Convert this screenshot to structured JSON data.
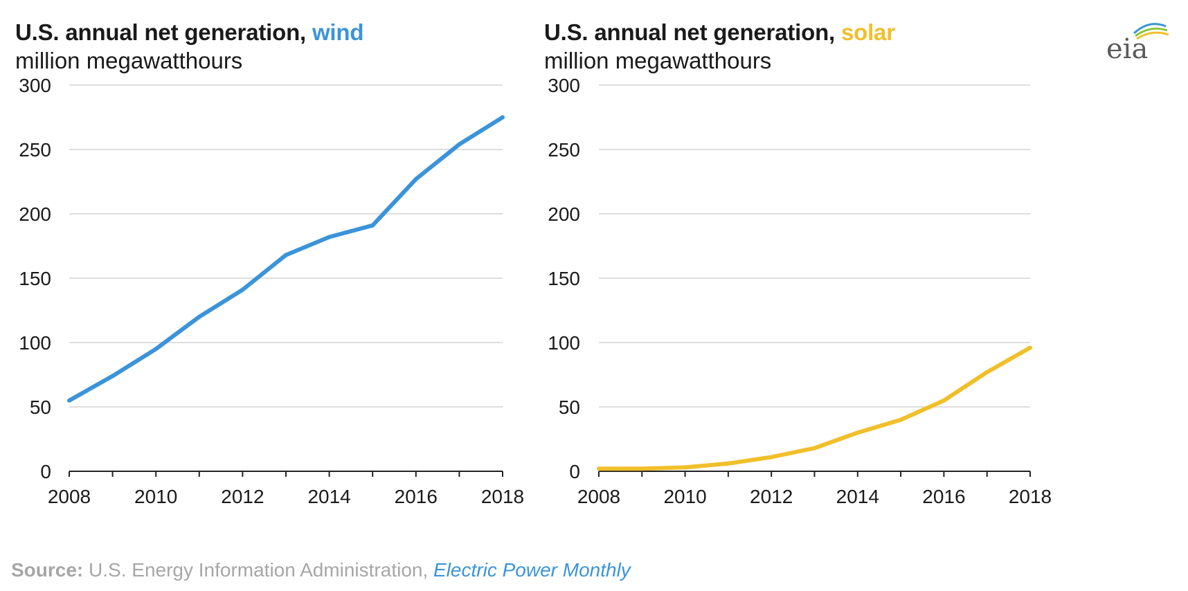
{
  "colors": {
    "wind": "#3b94d9",
    "solar": "#f0bf2a",
    "grid": "#dedede",
    "axis": "#222222"
  },
  "source": {
    "label": "Source:",
    "text": " U.S. Energy Information Administration, ",
    "link": "Electric Power Monthly"
  },
  "logo": {
    "text": "eia"
  },
  "chart_data": [
    {
      "type": "line",
      "title_prefix": "U.S. annual net generation, ",
      "title_highlight": "wind",
      "subtitle": "million megawatthours",
      "xlabel": "",
      "ylabel": "",
      "x": [
        2008,
        2009,
        2010,
        2011,
        2012,
        2013,
        2014,
        2015,
        2016,
        2017,
        2018
      ],
      "series": [
        {
          "values": [
            55,
            74,
            95,
            120,
            141,
            168,
            182,
            191,
            227,
            254,
            275
          ]
        }
      ],
      "ylim": [
        0,
        300
      ],
      "yticks": [
        0,
        50,
        100,
        150,
        200,
        250,
        300
      ],
      "xticks": [
        2008,
        2010,
        2012,
        2014,
        2016,
        2018
      ],
      "grid": true
    },
    {
      "type": "line",
      "title_prefix": "U.S. annual net generation, ",
      "title_highlight": "solar",
      "subtitle": "million megawatthours",
      "xlabel": "",
      "ylabel": "",
      "x": [
        2008,
        2009,
        2010,
        2011,
        2012,
        2013,
        2014,
        2015,
        2016,
        2017,
        2018
      ],
      "series": [
        {
          "values": [
            2,
            2,
            3,
            6,
            11,
            18,
            30,
            40,
            55,
            77,
            96
          ]
        }
      ],
      "ylim": [
        0,
        300
      ],
      "yticks": [
        0,
        50,
        100,
        150,
        200,
        250,
        300
      ],
      "xticks": [
        2008,
        2010,
        2012,
        2014,
        2016,
        2018
      ],
      "grid": true
    }
  ]
}
